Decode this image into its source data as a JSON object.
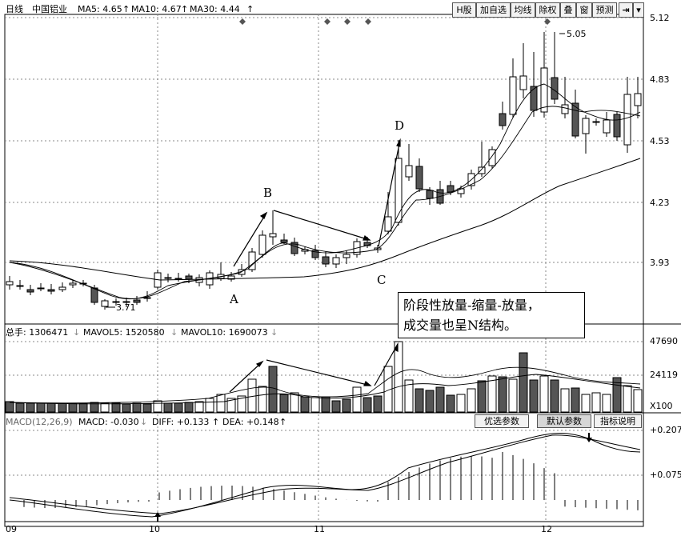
{
  "header": {
    "period": "日线",
    "stock_name": "中国铝业",
    "ma5": "MA5: 4.65",
    "ma10": "MA10: 4.67",
    "ma30": "MA30: 4.44",
    "up_arrow": "↑"
  },
  "toolbar": {
    "buttons": [
      "H股",
      "加自选",
      "均线",
      "除权",
      "叠",
      "窗",
      "预测"
    ],
    "arrow_right": "⇥",
    "dropdown": "▾"
  },
  "price_axis": {
    "labels": [
      "5.12",
      "4.83",
      "4.53",
      "4.23",
      "3.93"
    ]
  },
  "annotations": {
    "high_label": "5.05",
    "low_label": "3.71",
    "letters": [
      "A",
      "B",
      "C",
      "D"
    ],
    "box_line1": "阶段性放量-缩量-放量，",
    "box_line2": "成交量也呈N结构。"
  },
  "volume": {
    "total": "总手: 1306471",
    "mavol5": "MAVOL5: 1520580",
    "mavol10": "MAVOL10: 1690073",
    "down_arrow": "↓",
    "axis_labels": [
      "47690",
      "24119"
    ],
    "unit": "X100"
  },
  "macd": {
    "title": "MACD(12,26,9)",
    "macd_value": "MACD: -0.030",
    "diff_value": "DIFF: +0.133",
    "dea_value": "DEA: +0.148",
    "down_arrow": "↓",
    "up_arrow": "↑",
    "buttons": [
      "优选参数",
      "默认参数",
      "指标说明"
    ],
    "axis_labels": [
      "+0.207",
      "+0.075"
    ]
  },
  "date_axis": {
    "labels": [
      "09",
      "10",
      "11",
      "12"
    ]
  },
  "colors": {
    "grid": "#888888",
    "candle": "#000000",
    "filled_candle": "#555555",
    "diamond": "#555555"
  }
}
